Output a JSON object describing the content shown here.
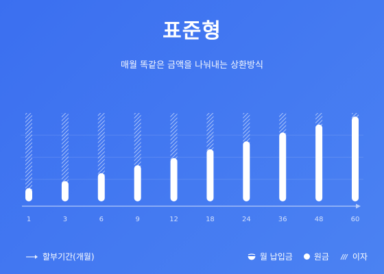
{
  "header": {
    "title": "표준형",
    "subtitle": "매월 똑같은 금액을 나눠내는 상환방식"
  },
  "legend": {
    "period_label": "할부기간(개월)",
    "monthly_payment_label": "월 납입금",
    "principal_label": "원금",
    "interest_label": "이자"
  },
  "colors": {
    "background_start": "#3b6ff0",
    "background_end": "#4b82f2",
    "bar": "#ffffff"
  },
  "chart_data": {
    "type": "bar",
    "categories": [
      "1",
      "3",
      "6",
      "9",
      "12",
      "18",
      "24",
      "36",
      "48",
      "60"
    ],
    "series": [
      {
        "name": "원금",
        "values": [
          0.15,
          0.23,
          0.32,
          0.41,
          0.49,
          0.59,
          0.68,
          0.78,
          0.87,
          0.96
        ]
      },
      {
        "name": "이자",
        "values": [
          0.85,
          0.77,
          0.68,
          0.59,
          0.51,
          0.41,
          0.32,
          0.22,
          0.13,
          0.04
        ]
      }
    ],
    "title": "",
    "xlabel": "할부기간(개월)",
    "ylabel": "",
    "ylim": [
      0,
      1
    ],
    "grid": true,
    "legend": "bottom"
  }
}
